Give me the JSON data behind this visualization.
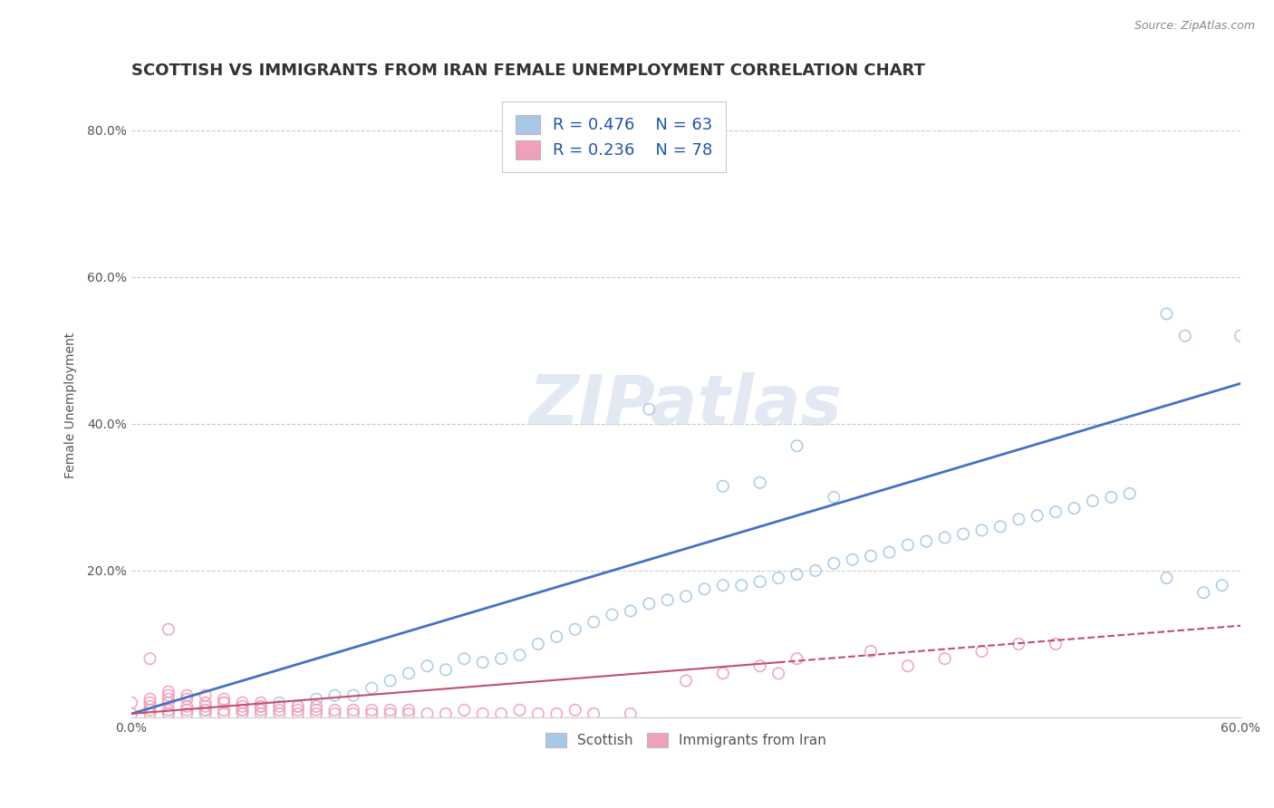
{
  "title": "SCOTTISH VS IMMIGRANTS FROM IRAN FEMALE UNEMPLOYMENT CORRELATION CHART",
  "source": "Source: ZipAtlas.com",
  "ylabel": "Female Unemployment",
  "xlim": [
    0.0,
    0.6
  ],
  "ylim": [
    0.0,
    0.85
  ],
  "xtick_positions": [
    0.0,
    0.1,
    0.2,
    0.3,
    0.4,
    0.5,
    0.6
  ],
  "xticklabels": [
    "0.0%",
    "",
    "",
    "",
    "",
    "",
    "60.0%"
  ],
  "ytick_positions": [
    0.0,
    0.2,
    0.4,
    0.6,
    0.8
  ],
  "yticklabels": [
    "",
    "20.0%",
    "40.0%",
    "60.0%",
    "80.0%"
  ],
  "background_color": "#ffffff",
  "grid_color": "#cccccc",
  "watermark": "ZIPatlas",
  "legend_r1": "R = 0.476",
  "legend_n1": "N = 63",
  "legend_r2": "R = 0.236",
  "legend_n2": "N = 78",
  "scatter_color_1": "#a8c8e8",
  "scatter_color_2": "#f0a0b8",
  "line_color_1": "#4472c4",
  "line_color_2": "#c05070",
  "legend_label_1": "Scottish",
  "legend_label_2": "Immigrants from Iran",
  "title_fontsize": 13,
  "axis_label_fontsize": 10,
  "tick_fontsize": 10,
  "legend_fontsize": 13,
  "blue_line_x": [
    0.0,
    0.6
  ],
  "blue_line_y": [
    0.005,
    0.455
  ],
  "pink_line_x": [
    0.0,
    0.6
  ],
  "pink_line_y": [
    0.005,
    0.125
  ],
  "s1_x": [
    0.02,
    0.04,
    0.05,
    0.06,
    0.07,
    0.08,
    0.09,
    0.1,
    0.11,
    0.12,
    0.13,
    0.14,
    0.15,
    0.16,
    0.17,
    0.18,
    0.19,
    0.2,
    0.21,
    0.22,
    0.23,
    0.24,
    0.25,
    0.26,
    0.27,
    0.28,
    0.29,
    0.3,
    0.31,
    0.32,
    0.33,
    0.34,
    0.35,
    0.36,
    0.37,
    0.38,
    0.39,
    0.4,
    0.41,
    0.42,
    0.43,
    0.44,
    0.45,
    0.46,
    0.47,
    0.48,
    0.49,
    0.5,
    0.51,
    0.52,
    0.53,
    0.54,
    0.56,
    0.57,
    0.58,
    0.59,
    0.6,
    0.28,
    0.32,
    0.34,
    0.36,
    0.38,
    0.56
  ],
  "s1_y": [
    0.005,
    0.01,
    0.02,
    0.01,
    0.015,
    0.02,
    0.015,
    0.025,
    0.03,
    0.03,
    0.04,
    0.05,
    0.06,
    0.07,
    0.065,
    0.08,
    0.075,
    0.08,
    0.085,
    0.1,
    0.11,
    0.12,
    0.13,
    0.14,
    0.145,
    0.155,
    0.16,
    0.165,
    0.175,
    0.18,
    0.18,
    0.185,
    0.19,
    0.195,
    0.2,
    0.21,
    0.215,
    0.22,
    0.225,
    0.235,
    0.24,
    0.245,
    0.25,
    0.255,
    0.26,
    0.27,
    0.275,
    0.28,
    0.285,
    0.295,
    0.3,
    0.305,
    0.55,
    0.52,
    0.17,
    0.18,
    0.52,
    0.42,
    0.315,
    0.32,
    0.37,
    0.3,
    0.19
  ],
  "s2_x": [
    0.0,
    0.0,
    0.01,
    0.01,
    0.01,
    0.01,
    0.01,
    0.02,
    0.02,
    0.02,
    0.02,
    0.02,
    0.02,
    0.03,
    0.03,
    0.03,
    0.03,
    0.03,
    0.04,
    0.04,
    0.04,
    0.04,
    0.04,
    0.05,
    0.05,
    0.05,
    0.05,
    0.06,
    0.06,
    0.06,
    0.06,
    0.07,
    0.07,
    0.07,
    0.07,
    0.08,
    0.08,
    0.08,
    0.09,
    0.09,
    0.09,
    0.1,
    0.1,
    0.1,
    0.11,
    0.11,
    0.12,
    0.12,
    0.13,
    0.13,
    0.14,
    0.14,
    0.15,
    0.15,
    0.16,
    0.17,
    0.18,
    0.19,
    0.2,
    0.21,
    0.22,
    0.23,
    0.24,
    0.25,
    0.27,
    0.3,
    0.32,
    0.34,
    0.36,
    0.4,
    0.42,
    0.44,
    0.46,
    0.48,
    0.5,
    0.02,
    0.01,
    0.35
  ],
  "s2_y": [
    0.005,
    0.02,
    0.005,
    0.01,
    0.015,
    0.02,
    0.025,
    0.005,
    0.01,
    0.02,
    0.025,
    0.03,
    0.035,
    0.005,
    0.01,
    0.015,
    0.025,
    0.03,
    0.005,
    0.01,
    0.015,
    0.02,
    0.03,
    0.005,
    0.01,
    0.02,
    0.025,
    0.005,
    0.01,
    0.015,
    0.02,
    0.005,
    0.01,
    0.015,
    0.02,
    0.005,
    0.01,
    0.015,
    0.005,
    0.01,
    0.015,
    0.005,
    0.01,
    0.015,
    0.005,
    0.01,
    0.005,
    0.01,
    0.005,
    0.01,
    0.005,
    0.01,
    0.005,
    0.01,
    0.005,
    0.005,
    0.01,
    0.005,
    0.005,
    0.01,
    0.005,
    0.005,
    0.01,
    0.005,
    0.005,
    0.05,
    0.06,
    0.07,
    0.08,
    0.09,
    0.07,
    0.08,
    0.09,
    0.1,
    0.1,
    0.12,
    0.08,
    0.06
  ]
}
